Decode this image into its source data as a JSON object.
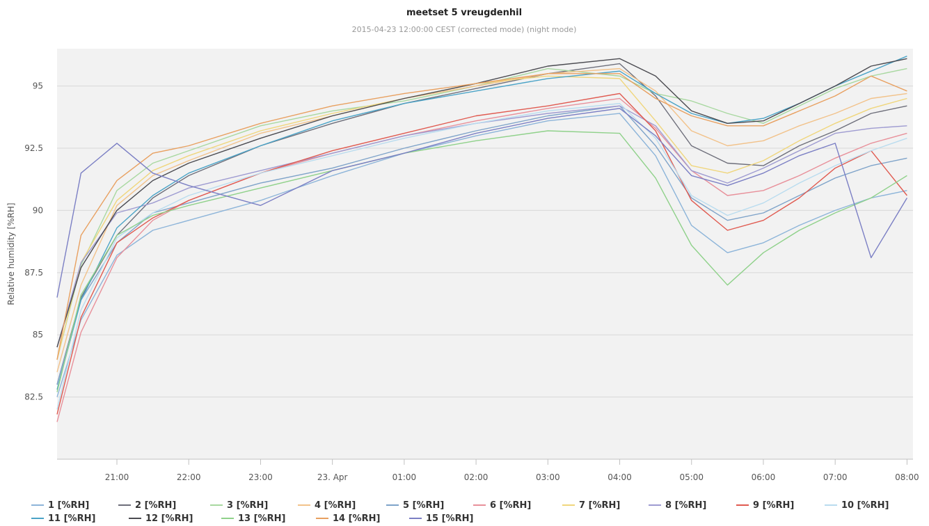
{
  "chart_data": {
    "type": "line",
    "title": "meetset 5 vreugdenhil",
    "subtitle": "2015-04-23 12:00:00 CEST (corrected mode) (night mode)",
    "ylabel": "Relative humidity [%RH]",
    "xlabel": "",
    "ylim": [
      80,
      96.5
    ],
    "yticks": [
      82.5,
      85,
      87.5,
      90,
      92.5,
      95
    ],
    "ytick_labels": [
      "82.5",
      "85",
      "87.5",
      "90",
      "92.5",
      "95"
    ],
    "xlim": [
      "2015-04-22 20:10",
      "2015-04-23 08:05"
    ],
    "xticks": [
      "2015-04-22 21:00",
      "2015-04-22 22:00",
      "2015-04-22 23:00",
      "2015-04-23 00:00",
      "2015-04-23 01:00",
      "2015-04-23 02:00",
      "2015-04-23 03:00",
      "2015-04-23 04:00",
      "2015-04-23 05:00",
      "2015-04-23 06:00",
      "2015-04-23 07:00",
      "2015-04-23 08:00"
    ],
    "xtick_labels": [
      "21:00",
      "22:00",
      "23:00",
      "23. Apr",
      "01:00",
      "02:00",
      "03:00",
      "04:00",
      "05:00",
      "06:00",
      "07:00",
      "08:00"
    ],
    "grid": true,
    "legend_position": "bottom",
    "x": [
      "2015-04-22 20:10",
      "2015-04-22 20:30",
      "2015-04-22 21:00",
      "2015-04-22 21:30",
      "2015-04-22 22:00",
      "2015-04-22 23:00",
      "2015-04-23 00:00",
      "2015-04-23 01:00",
      "2015-04-23 02:00",
      "2015-04-23 03:00",
      "2015-04-23 04:00",
      "2015-04-23 04:30",
      "2015-04-23 05:00",
      "2015-04-23 05:30",
      "2015-04-23 06:00",
      "2015-04-23 06:30",
      "2015-04-23 07:00",
      "2015-04-23 07:30",
      "2015-04-23 08:00"
    ],
    "series": [
      {
        "name": "1 [%RH]",
        "color": "#8cb4d9",
        "values": [
          82.5,
          85.6,
          88.2,
          89.2,
          89.6,
          90.4,
          91.4,
          92.3,
          93.0,
          93.6,
          93.9,
          92.2,
          89.4,
          88.3,
          88.7,
          89.4,
          90.0,
          90.5,
          90.8
        ]
      },
      {
        "name": "2 [%RH]",
        "color": "#6d6e7a",
        "values": [
          83.0,
          86.5,
          89.0,
          90.5,
          91.4,
          92.6,
          93.5,
          94.3,
          94.9,
          95.5,
          95.9,
          94.6,
          92.6,
          91.9,
          91.8,
          92.6,
          93.2,
          93.9,
          94.2
        ]
      },
      {
        "name": "3 [%RH]",
        "color": "#a8d8a0",
        "values": [
          84.0,
          87.8,
          90.8,
          91.9,
          92.4,
          93.4,
          94.0,
          94.4,
          95.0,
          95.7,
          95.4,
          94.7,
          94.4,
          93.9,
          93.5,
          94.2,
          94.9,
          95.4,
          95.7
        ]
      },
      {
        "name": "4 [%RH]",
        "color": "#f2c28a",
        "values": [
          83.5,
          87.0,
          90.2,
          91.4,
          92.0,
          93.1,
          93.8,
          94.5,
          95.0,
          95.5,
          95.7,
          94.8,
          93.2,
          92.6,
          92.8,
          93.4,
          93.9,
          94.5,
          94.7
        ]
      },
      {
        "name": "5 [%RH]",
        "color": "#7ea3c9",
        "values": [
          83.0,
          86.4,
          88.7,
          89.9,
          90.3,
          91.1,
          91.7,
          92.5,
          93.2,
          93.8,
          94.2,
          92.6,
          90.5,
          89.6,
          89.9,
          90.6,
          91.3,
          91.8,
          92.1
        ]
      },
      {
        "name": "6 [%RH]",
        "color": "#e8909a",
        "values": [
          81.5,
          85.1,
          88.1,
          89.6,
          90.4,
          91.5,
          92.3,
          93.0,
          93.6,
          94.1,
          94.5,
          93.3,
          91.6,
          90.6,
          90.8,
          91.4,
          92.1,
          92.7,
          93.1
        ]
      },
      {
        "name": "7 [%RH]",
        "color": "#f0d67c",
        "values": [
          84.0,
          87.9,
          90.4,
          91.6,
          92.2,
          93.2,
          93.9,
          94.5,
          95.1,
          95.4,
          95.3,
          93.6,
          91.8,
          91.5,
          92.0,
          92.8,
          93.5,
          94.1,
          94.5
        ]
      },
      {
        "name": "8 [%RH]",
        "color": "#9e9bd1",
        "values": [
          84.5,
          87.9,
          89.9,
          90.3,
          90.9,
          91.6,
          92.3,
          93.0,
          93.5,
          93.9,
          94.2,
          93.4,
          91.6,
          91.1,
          91.7,
          92.4,
          93.1,
          93.3,
          93.4
        ]
      },
      {
        "name": "9 [%RH]",
        "color": "#e05a50",
        "values": [
          81.8,
          85.7,
          88.7,
          89.7,
          90.4,
          91.5,
          92.4,
          93.1,
          93.8,
          94.2,
          94.7,
          93.2,
          90.4,
          89.2,
          89.6,
          90.5,
          91.7,
          92.4,
          90.6
        ]
      },
      {
        "name": "10 [%RH]",
        "color": "#b9dcef",
        "values": [
          82.0,
          86.0,
          88.9,
          89.9,
          90.6,
          91.5,
          92.2,
          92.9,
          93.5,
          94.0,
          94.3,
          92.9,
          90.6,
          89.8,
          90.3,
          91.1,
          91.8,
          92.4,
          92.9
        ]
      },
      {
        "name": "11 [%RH]",
        "color": "#4aa3c7",
        "values": [
          82.8,
          86.4,
          89.3,
          90.6,
          91.5,
          92.6,
          93.6,
          94.3,
          94.8,
          95.3,
          95.6,
          94.7,
          93.9,
          93.5,
          93.7,
          94.3,
          95.0,
          95.6,
          96.2
        ]
      },
      {
        "name": "12 [%RH]",
        "color": "#4a4a50",
        "values": [
          84.5,
          87.7,
          90.0,
          91.2,
          91.9,
          92.9,
          93.8,
          94.5,
          95.1,
          95.8,
          96.1,
          95.4,
          94.0,
          93.5,
          93.6,
          94.3,
          95.0,
          95.8,
          96.1
        ]
      },
      {
        "name": "13 [%RH]",
        "color": "#8fd18a",
        "values": [
          82.7,
          86.6,
          89.0,
          89.8,
          90.2,
          90.9,
          91.6,
          92.3,
          92.8,
          93.2,
          93.1,
          91.3,
          88.6,
          87.0,
          88.3,
          89.2,
          89.9,
          90.5,
          91.4
        ]
      },
      {
        "name": "14 [%RH]",
        "color": "#e8a060",
        "values": [
          84.0,
          89.0,
          91.2,
          92.3,
          92.6,
          93.5,
          94.2,
          94.7,
          95.1,
          95.5,
          95.5,
          94.5,
          93.8,
          93.4,
          93.4,
          94.0,
          94.6,
          95.4,
          94.8
        ]
      },
      {
        "name": "15 [%RH]",
        "color": "#7b7fc4",
        "values": [
          86.5,
          91.5,
          92.7,
          91.5,
          91.0,
          90.2,
          91.6,
          92.3,
          93.1,
          93.7,
          94.1,
          93.0,
          91.4,
          91.0,
          91.5,
          92.2,
          92.7,
          88.1,
          90.5
        ]
      }
    ]
  }
}
